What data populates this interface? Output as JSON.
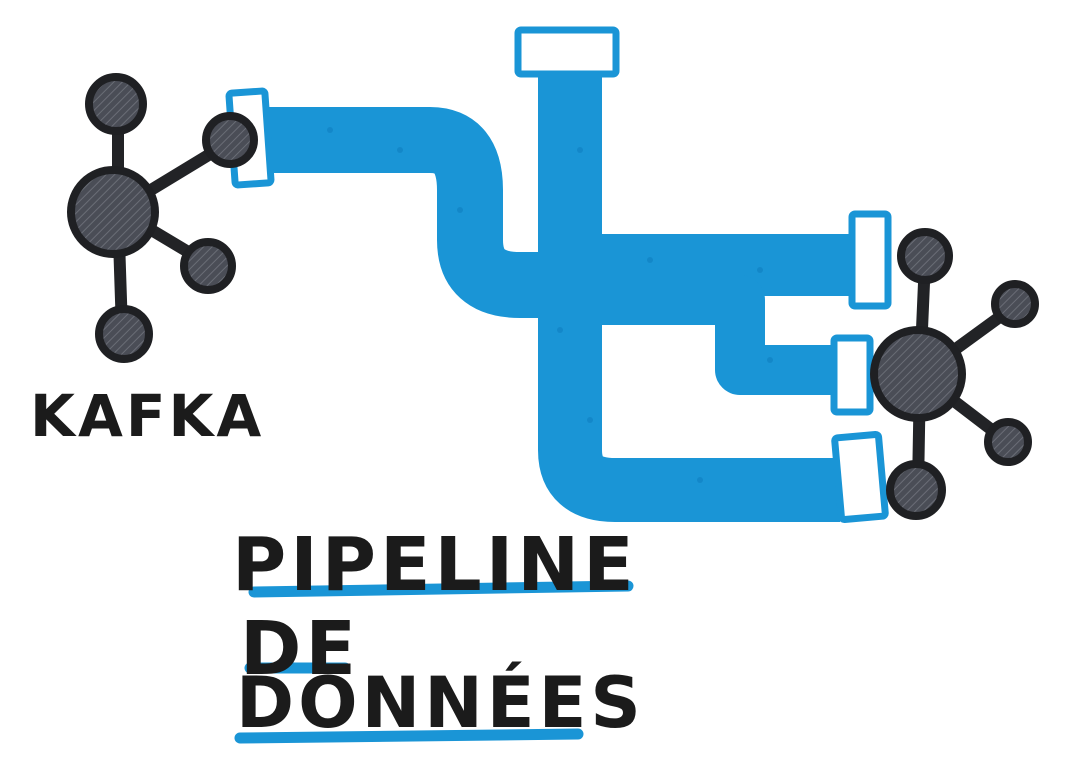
{
  "source_label": "KAFKA",
  "title": {
    "line1": "PIPELINE",
    "line2": "DE",
    "line3": "DONNÉES"
  },
  "colors": {
    "pipe": "#1a95d6",
    "pipe_dark": "#0f7fc0",
    "node": "#4a4d56",
    "node_dark": "#2a2c31",
    "ink": "#1b1b1b"
  }
}
